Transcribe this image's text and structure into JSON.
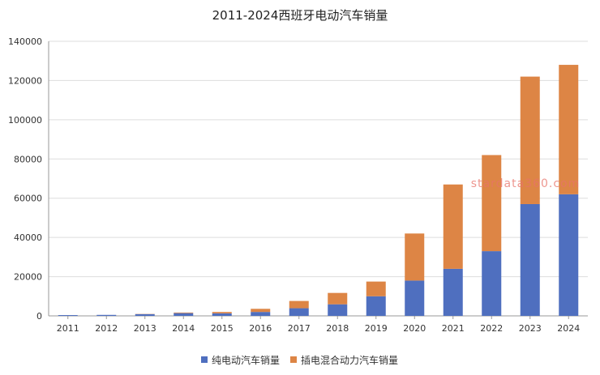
{
  "chart_data": {
    "type": "bar",
    "stacked": true,
    "title": "2011-2024西班牙电动汽车销量",
    "categories": [
      "2011",
      "2012",
      "2013",
      "2014",
      "2015",
      "2016",
      "2017",
      "2018",
      "2019",
      "2020",
      "2021",
      "2022",
      "2023",
      "2024"
    ],
    "series": [
      {
        "name": "纯电动汽车销量",
        "color": "#4f6fbf",
        "values": [
          400,
          500,
          900,
          1400,
          1300,
          2000,
          3900,
          5900,
          10000,
          18000,
          24000,
          33000,
          57000,
          62000
        ]
      },
      {
        "name": "插电混合动力汽车销量",
        "color": "#dd8545",
        "values": [
          0,
          0,
          100,
          300,
          700,
          1600,
          3700,
          5800,
          7500,
          24000,
          43000,
          49000,
          65000,
          66000
        ]
      }
    ],
    "ylim": [
      0,
      140000
    ],
    "yticks": [
      0,
      20000,
      40000,
      60000,
      80000,
      100000,
      120000,
      140000
    ],
    "grid": true,
    "legend_position": "bottom"
  },
  "watermark": "stardata360.com"
}
